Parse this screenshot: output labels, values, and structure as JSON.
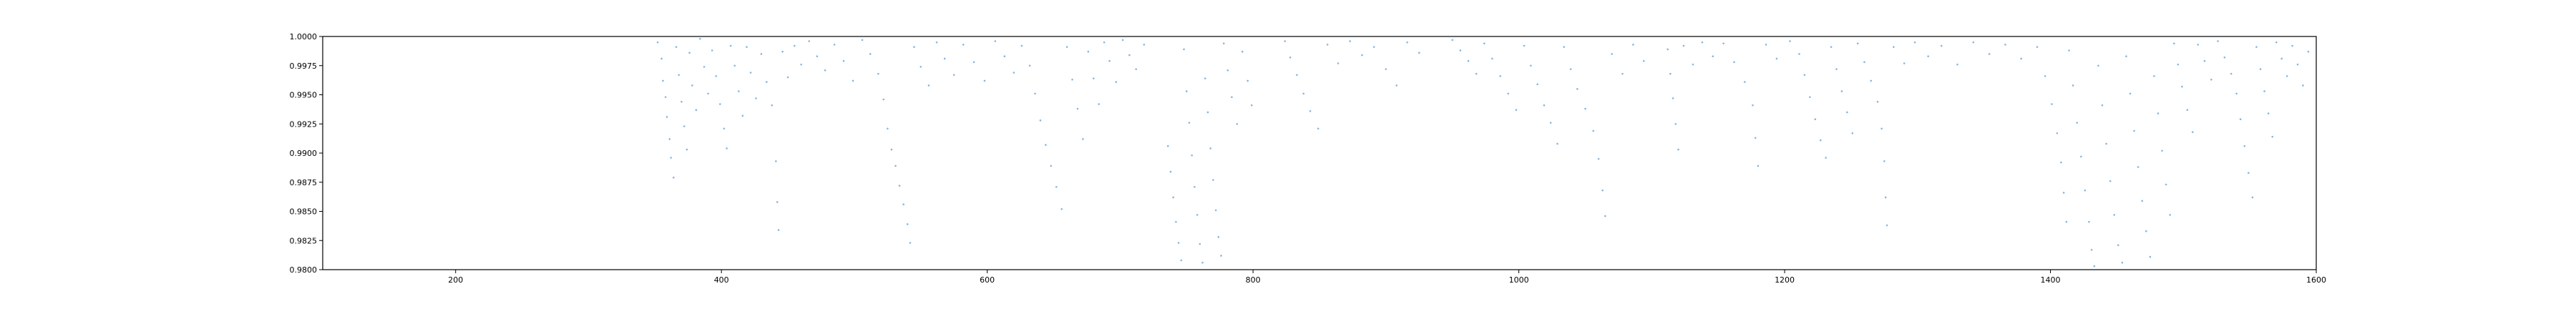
{
  "colors": {
    "background": "#ffffff",
    "axis": "#000000",
    "point": "#5b9fd6"
  },
  "chart_data": {
    "type": "scatter",
    "title": "",
    "xlabel": "",
    "ylabel": "",
    "xlim": [
      100,
      1600
    ],
    "ylim": [
      0.98,
      1.0
    ],
    "grid": false,
    "legend": "none",
    "x_ticks": [
      200,
      400,
      600,
      800,
      1000,
      1200,
      1400,
      1600
    ],
    "x_tick_labels": [
      "200",
      "400",
      "600",
      "800",
      "1000",
      "1200",
      "1400",
      "1600"
    ],
    "y_ticks": [
      0.98,
      0.9825,
      0.985,
      0.9875,
      0.99,
      0.9925,
      0.995,
      0.9975,
      1.0
    ],
    "y_tick_labels": [
      "0.9800",
      "0.9825",
      "0.9850",
      "0.9875",
      "0.9900",
      "0.9925",
      "0.9950",
      "0.9975",
      "1.0000"
    ],
    "series": [
      {
        "color": "#5b9fd6",
        "points": [
          [
            352,
            0.9995
          ],
          [
            355,
            0.9981
          ],
          [
            356,
            0.9962
          ],
          [
            358,
            0.9948
          ],
          [
            359,
            0.9931
          ],
          [
            361,
            0.9912
          ],
          [
            362,
            0.9896
          ],
          [
            364,
            0.9879
          ],
          [
            366,
            0.9991
          ],
          [
            368,
            0.9967
          ],
          [
            370,
            0.9944
          ],
          [
            372,
            0.9923
          ],
          [
            374,
            0.9903
          ],
          [
            376,
            0.9986
          ],
          [
            378,
            0.9958
          ],
          [
            381,
            0.9937
          ],
          [
            384,
            0.9998
          ],
          [
            387,
            0.9974
          ],
          [
            390,
            0.9951
          ],
          [
            393,
            0.9988
          ],
          [
            396,
            0.9966
          ],
          [
            399,
            0.9942
          ],
          [
            402,
            0.9921
          ],
          [
            404,
            0.9904
          ],
          [
            407,
            0.9992
          ],
          [
            410,
            0.9975
          ],
          [
            413,
            0.9953
          ],
          [
            416,
            0.9932
          ],
          [
            419,
            0.9991
          ],
          [
            422,
            0.9969
          ],
          [
            426,
            0.9947
          ],
          [
            430,
            0.9985
          ],
          [
            434,
            0.9961
          ],
          [
            438,
            0.9941
          ],
          [
            441,
            0.9893
          ],
          [
            442,
            0.9858
          ],
          [
            443,
            0.9834
          ],
          [
            446,
            0.9987
          ],
          [
            450,
            0.9965
          ],
          [
            455,
            0.9992
          ],
          [
            460,
            0.9976
          ],
          [
            466,
            0.9996
          ],
          [
            472,
            0.9983
          ],
          [
            478,
            0.9971
          ],
          [
            485,
            0.9993
          ],
          [
            492,
            0.9979
          ],
          [
            499,
            0.9962
          ],
          [
            506,
            0.9997
          ],
          [
            512,
            0.9985
          ],
          [
            518,
            0.9968
          ],
          [
            522,
            0.9946
          ],
          [
            525,
            0.9921
          ],
          [
            528,
            0.9903
          ],
          [
            531,
            0.9889
          ],
          [
            534,
            0.9872
          ],
          [
            537,
            0.9856
          ],
          [
            540,
            0.9839
          ],
          [
            542,
            0.9823
          ],
          [
            545,
            0.9991
          ],
          [
            550,
            0.9974
          ],
          [
            556,
            0.9958
          ],
          [
            562,
            0.9995
          ],
          [
            568,
            0.9981
          ],
          [
            575,
            0.9967
          ],
          [
            582,
            0.9993
          ],
          [
            590,
            0.9978
          ],
          [
            598,
            0.9962
          ],
          [
            606,
            0.9996
          ],
          [
            613,
            0.9983
          ],
          [
            620,
            0.9969
          ],
          [
            626,
            0.9992
          ],
          [
            632,
            0.9975
          ],
          [
            636,
            0.9951
          ],
          [
            640,
            0.9928
          ],
          [
            644,
            0.9907
          ],
          [
            648,
            0.9889
          ],
          [
            652,
            0.9871
          ],
          [
            656,
            0.9852
          ],
          [
            660,
            0.9991
          ],
          [
            664,
            0.9963
          ],
          [
            668,
            0.9938
          ],
          [
            672,
            0.9912
          ],
          [
            676,
            0.9987
          ],
          [
            680,
            0.9964
          ],
          [
            684,
            0.9942
          ],
          [
            688,
            0.9995
          ],
          [
            692,
            0.9979
          ],
          [
            697,
            0.9961
          ],
          [
            702,
            0.9997
          ],
          [
            707,
            0.9984
          ],
          [
            712,
            0.9972
          ],
          [
            718,
            0.9993
          ],
          [
            736,
            0.9906
          ],
          [
            738,
            0.9884
          ],
          [
            740,
            0.9862
          ],
          [
            742,
            0.9841
          ],
          [
            744,
            0.9823
          ],
          [
            746,
            0.9808
          ],
          [
            748,
            0.9989
          ],
          [
            750,
            0.9953
          ],
          [
            752,
            0.9926
          ],
          [
            754,
            0.9898
          ],
          [
            756,
            0.9871
          ],
          [
            758,
            0.9847
          ],
          [
            760,
            0.9822
          ],
          [
            762,
            0.9806
          ],
          [
            764,
            0.9964
          ],
          [
            766,
            0.9935
          ],
          [
            768,
            0.9904
          ],
          [
            770,
            0.9877
          ],
          [
            772,
            0.9851
          ],
          [
            774,
            0.9828
          ],
          [
            776,
            0.9812
          ],
          [
            778,
            0.9994
          ],
          [
            781,
            0.9971
          ],
          [
            784,
            0.9948
          ],
          [
            788,
            0.9925
          ],
          [
            792,
            0.9987
          ],
          [
            796,
            0.9962
          ],
          [
            799,
            0.9941
          ],
          [
            824,
            0.9996
          ],
          [
            828,
            0.9982
          ],
          [
            833,
            0.9967
          ],
          [
            838,
            0.9951
          ],
          [
            843,
            0.9936
          ],
          [
            849,
            0.9921
          ],
          [
            856,
            0.9993
          ],
          [
            864,
            0.9977
          ],
          [
            873,
            0.9996
          ],
          [
            882,
            0.9984
          ],
          [
            891,
            0.9991
          ],
          [
            900,
            0.9972
          ],
          [
            908,
            0.9958
          ],
          [
            916,
            0.9995
          ],
          [
            925,
            0.9986
          ],
          [
            950,
            0.9997
          ],
          [
            956,
            0.9988
          ],
          [
            962,
            0.9979
          ],
          [
            968,
            0.9968
          ],
          [
            974,
            0.9994
          ],
          [
            980,
            0.9981
          ],
          [
            986,
            0.9966
          ],
          [
            992,
            0.9951
          ],
          [
            998,
            0.9937
          ],
          [
            1004,
            0.9992
          ],
          [
            1009,
            0.9975
          ],
          [
            1014,
            0.9959
          ],
          [
            1019,
            0.9941
          ],
          [
            1024,
            0.9926
          ],
          [
            1029,
            0.9908
          ],
          [
            1034,
            0.9991
          ],
          [
            1039,
            0.9972
          ],
          [
            1044,
            0.9955
          ],
          [
            1050,
            0.9938
          ],
          [
            1056,
            0.9919
          ],
          [
            1060,
            0.9895
          ],
          [
            1063,
            0.9868
          ],
          [
            1065,
            0.9846
          ],
          [
            1070,
            0.9985
          ],
          [
            1078,
            0.9968
          ],
          [
            1086,
            0.9993
          ],
          [
            1094,
            0.9979
          ],
          [
            1112,
            0.9989
          ],
          [
            1114,
            0.9968
          ],
          [
            1116,
            0.9947
          ],
          [
            1118,
            0.9925
          ],
          [
            1120,
            0.9903
          ],
          [
            1124,
            0.9992
          ],
          [
            1131,
            0.9976
          ],
          [
            1138,
            0.9995
          ],
          [
            1146,
            0.9983
          ],
          [
            1154,
            0.9994
          ],
          [
            1162,
            0.9978
          ],
          [
            1170,
            0.9961
          ],
          [
            1176,
            0.9941
          ],
          [
            1178,
            0.9913
          ],
          [
            1180,
            0.9889
          ],
          [
            1186,
            0.9993
          ],
          [
            1194,
            0.9981
          ],
          [
            1204,
            0.9996
          ],
          [
            1211,
            0.9985
          ],
          [
            1215,
            0.9967
          ],
          [
            1219,
            0.9948
          ],
          [
            1223,
            0.9929
          ],
          [
            1227,
            0.9911
          ],
          [
            1231,
            0.9896
          ],
          [
            1235,
            0.9991
          ],
          [
            1239,
            0.9972
          ],
          [
            1243,
            0.9953
          ],
          [
            1247,
            0.9935
          ],
          [
            1251,
            0.9917
          ],
          [
            1255,
            0.9994
          ],
          [
            1260,
            0.9978
          ],
          [
            1265,
            0.9962
          ],
          [
            1270,
            0.9944
          ],
          [
            1273,
            0.9921
          ],
          [
            1275,
            0.9893
          ],
          [
            1276,
            0.9862
          ],
          [
            1277,
            0.9838
          ],
          [
            1282,
            0.9991
          ],
          [
            1290,
            0.9977
          ],
          [
            1298,
            0.9995
          ],
          [
            1308,
            0.9983
          ],
          [
            1318,
            0.9992
          ],
          [
            1330,
            0.9976
          ],
          [
            1342,
            0.9995
          ],
          [
            1354,
            0.9985
          ],
          [
            1366,
            0.9993
          ],
          [
            1378,
            0.9981
          ],
          [
            1390,
            0.9991
          ],
          [
            1396,
            0.9966
          ],
          [
            1401,
            0.9942
          ],
          [
            1405,
            0.9917
          ],
          [
            1408,
            0.9892
          ],
          [
            1410,
            0.9866
          ],
          [
            1412,
            0.9841
          ],
          [
            1414,
            0.9988
          ],
          [
            1417,
            0.9958
          ],
          [
            1420,
            0.9926
          ],
          [
            1423,
            0.9897
          ],
          [
            1426,
            0.9868
          ],
          [
            1429,
            0.9841
          ],
          [
            1431,
            0.9817
          ],
          [
            1433,
            0.9803
          ],
          [
            1436,
            0.9975
          ],
          [
            1439,
            0.9941
          ],
          [
            1442,
            0.9908
          ],
          [
            1445,
            0.9876
          ],
          [
            1448,
            0.9847
          ],
          [
            1451,
            0.9821
          ],
          [
            1454,
            0.9806
          ],
          [
            1457,
            0.9983
          ],
          [
            1460,
            0.9951
          ],
          [
            1463,
            0.9919
          ],
          [
            1466,
            0.9888
          ],
          [
            1469,
            0.9859
          ],
          [
            1472,
            0.9833
          ],
          [
            1475,
            0.9811
          ],
          [
            1478,
            0.9966
          ],
          [
            1481,
            0.9934
          ],
          [
            1484,
            0.9902
          ],
          [
            1487,
            0.9873
          ],
          [
            1490,
            0.9847
          ],
          [
            1493,
            0.9994
          ],
          [
            1496,
            0.9976
          ],
          [
            1499,
            0.9957
          ],
          [
            1503,
            0.9937
          ],
          [
            1507,
            0.9918
          ],
          [
            1511,
            0.9993
          ],
          [
            1516,
            0.9979
          ],
          [
            1521,
            0.9963
          ],
          [
            1526,
            0.9996
          ],
          [
            1531,
            0.9982
          ],
          [
            1536,
            0.9968
          ],
          [
            1540,
            0.9951
          ],
          [
            1543,
            0.9929
          ],
          [
            1546,
            0.9906
          ],
          [
            1549,
            0.9883
          ],
          [
            1552,
            0.9862
          ],
          [
            1555,
            0.9991
          ],
          [
            1558,
            0.9972
          ],
          [
            1561,
            0.9953
          ],
          [
            1564,
            0.9934
          ],
          [
            1567,
            0.9914
          ],
          [
            1570,
            0.9995
          ],
          [
            1574,
            0.9981
          ],
          [
            1578,
            0.9966
          ],
          [
            1582,
            0.9992
          ],
          [
            1586,
            0.9976
          ],
          [
            1590,
            0.9958
          ],
          [
            1594,
            0.9987
          ]
        ]
      }
    ]
  }
}
